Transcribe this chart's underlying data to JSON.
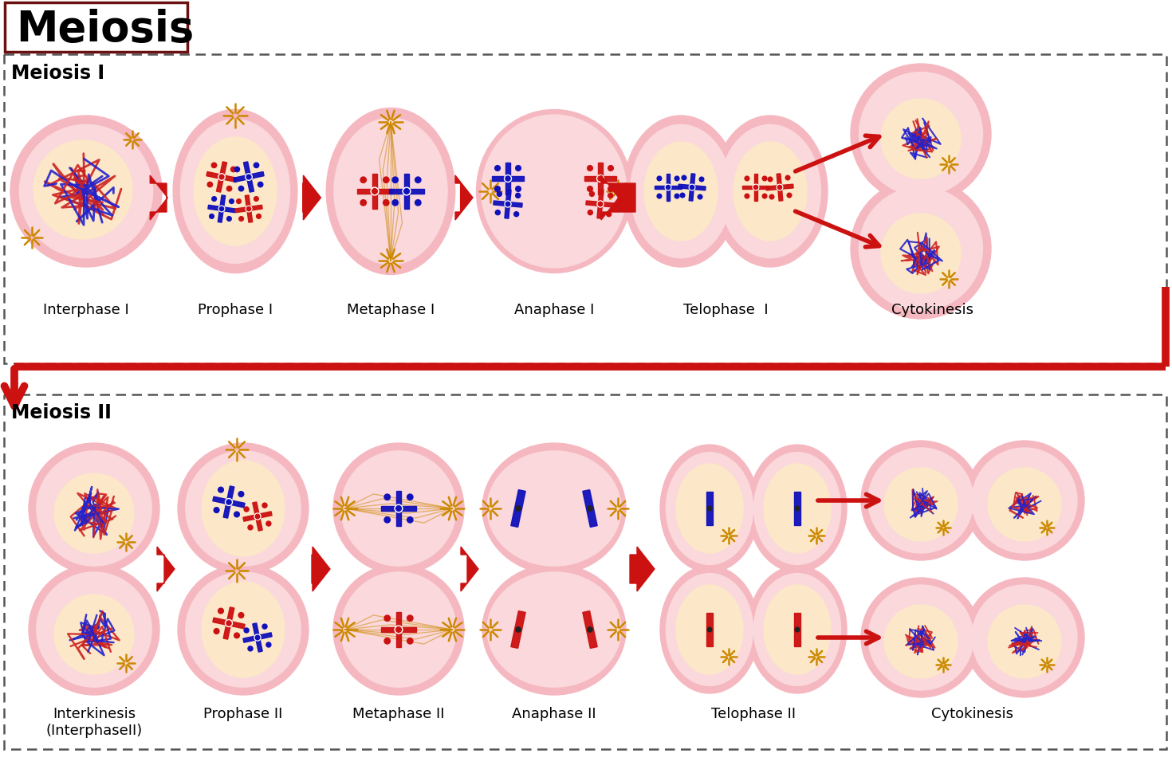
{
  "title": "Meiosis",
  "bg_color": "#ffffff",
  "cell_pink": "#f5b8c0",
  "cell_light": "#fad8dc",
  "nucleus_cream": "#fce8c8",
  "chr_red": "#cc1111",
  "chr_blue": "#1111bb",
  "arrow_red": "#cc1111",
  "spindle_gold": "#cc8800",
  "title_border": "#6b1010",
  "dash_color": "#555555",
  "meiosis1_label": "Meiosis I",
  "meiosis2_label": "Meiosis II",
  "phases1": [
    "Interphase I",
    "Prophase I",
    "Metaphase I",
    "Anaphase I",
    "Telophase  I",
    "Cytokinesis"
  ],
  "phases2": [
    "Interkinesis\n(InterphaseII)",
    "Prophase II",
    "Metaphase II",
    "Anaphase II",
    "Telophase II",
    "Cytokinesis"
  ],
  "tangle_red": "#cc2222",
  "tangle_blue": "#2222cc"
}
